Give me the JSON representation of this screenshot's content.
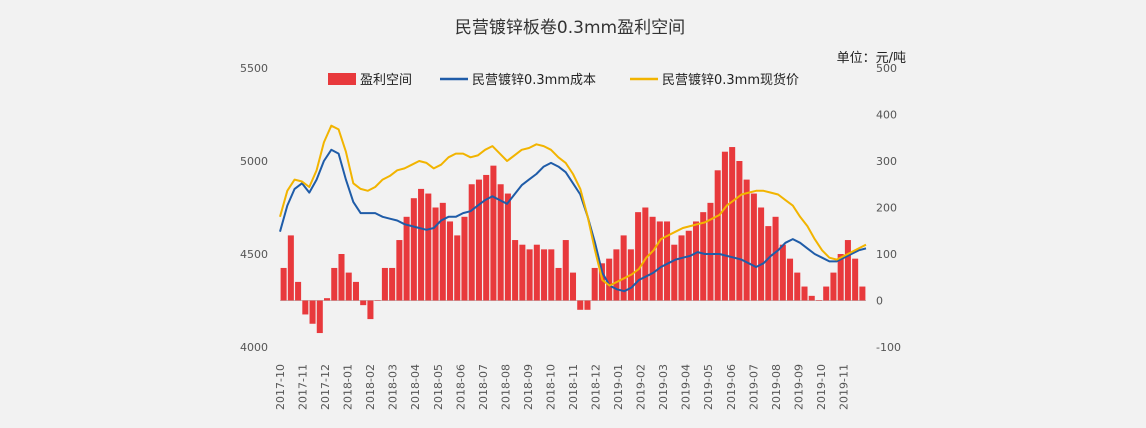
{
  "chart_data": {
    "type": "bar+line",
    "title": "民营镀锌板卷0.3mm盈利空间",
    "unit_label": "单位：元/吨",
    "y_left": {
      "min": 4000,
      "max": 5500,
      "ticks": [
        4000,
        4500,
        5000,
        5500
      ]
    },
    "y_right": {
      "min": -100,
      "max": 500,
      "ticks": [
        -100,
        0,
        100,
        200,
        300,
        400,
        500
      ]
    },
    "x_start": "2017-10",
    "x_end": "2019-12",
    "x_tick_labels": [
      "2017-10",
      "2017-11",
      "2017-12",
      "2018-01",
      "2018-02",
      "2018-03",
      "2018-04",
      "2018-05",
      "2018-06",
      "2018-07",
      "2018-08",
      "2018-09",
      "2018-10",
      "2018-11",
      "2018-12",
      "2019-01",
      "2019-02",
      "2019-03",
      "2019-04",
      "2019-05",
      "2019-06",
      "2019-07",
      "2019-08",
      "2019-09",
      "2019-10",
      "2019-11"
    ],
    "legend_position": "top",
    "series": [
      {
        "name": "盈利空间",
        "type": "bar",
        "axis": "right",
        "color": "#e8393c",
        "values": [
          70,
          140,
          40,
          -30,
          -50,
          -70,
          5,
          70,
          100,
          60,
          40,
          -10,
          -40,
          0,
          70,
          70,
          130,
          180,
          220,
          240,
          230,
          200,
          210,
          170,
          140,
          180,
          250,
          260,
          270,
          290,
          250,
          230,
          130,
          120,
          110,
          120,
          110,
          110,
          70,
          130,
          60,
          -20,
          -20,
          70,
          80,
          90,
          110,
          140,
          110,
          190,
          200,
          180,
          170,
          170,
          120,
          140,
          150,
          170,
          190,
          210,
          280,
          320,
          330,
          300,
          260,
          230,
          200,
          160,
          180,
          120,
          90,
          60,
          30,
          10,
          0,
          30,
          60,
          100,
          130,
          90,
          30
        ]
      },
      {
        "name": "民营镀锌0.3mm成本",
        "type": "line",
        "axis": "left",
        "color": "#1f5ca8",
        "width": 2,
        "values": [
          4620,
          4760,
          4850,
          4880,
          4830,
          4900,
          5000,
          5060,
          5040,
          4900,
          4780,
          4720,
          4720,
          4720,
          4700,
          4690,
          4680,
          4660,
          4650,
          4640,
          4630,
          4640,
          4680,
          4700,
          4700,
          4720,
          4730,
          4760,
          4790,
          4810,
          4790,
          4770,
          4820,
          4870,
          4900,
          4930,
          4970,
          4990,
          4970,
          4940,
          4880,
          4820,
          4700,
          4560,
          4400,
          4330,
          4310,
          4300,
          4320,
          4360,
          4380,
          4400,
          4430,
          4450,
          4470,
          4480,
          4490,
          4510,
          4500,
          4500,
          4500,
          4490,
          4480,
          4470,
          4450,
          4430,
          4450,
          4490,
          4520,
          4560,
          4580,
          4560,
          4530,
          4500,
          4480,
          4460,
          4460,
          4480,
          4500,
          4520,
          4530
        ]
      },
      {
        "name": "民营镀锌0.3mm现货价",
        "type": "line",
        "axis": "left",
        "color": "#f2b400",
        "width": 2,
        "values": [
          4700,
          4840,
          4900,
          4890,
          4860,
          4950,
          5100,
          5190,
          5170,
          5050,
          4880,
          4850,
          4840,
          4860,
          4900,
          4920,
          4950,
          4960,
          4980,
          5000,
          4990,
          4960,
          4980,
          5020,
          5040,
          5040,
          5020,
          5030,
          5060,
          5080,
          5040,
          5000,
          5030,
          5060,
          5070,
          5090,
          5080,
          5060,
          5020,
          4990,
          4930,
          4850,
          4700,
          4520,
          4360,
          4330,
          4350,
          4370,
          4390,
          4420,
          4480,
          4520,
          4580,
          4600,
          4620,
          4640,
          4650,
          4660,
          4670,
          4690,
          4710,
          4760,
          4790,
          4820,
          4830,
          4840,
          4840,
          4830,
          4820,
          4790,
          4760,
          4700,
          4650,
          4580,
          4520,
          4480,
          4470,
          4490,
          4510,
          4530,
          4550
        ]
      }
    ]
  }
}
